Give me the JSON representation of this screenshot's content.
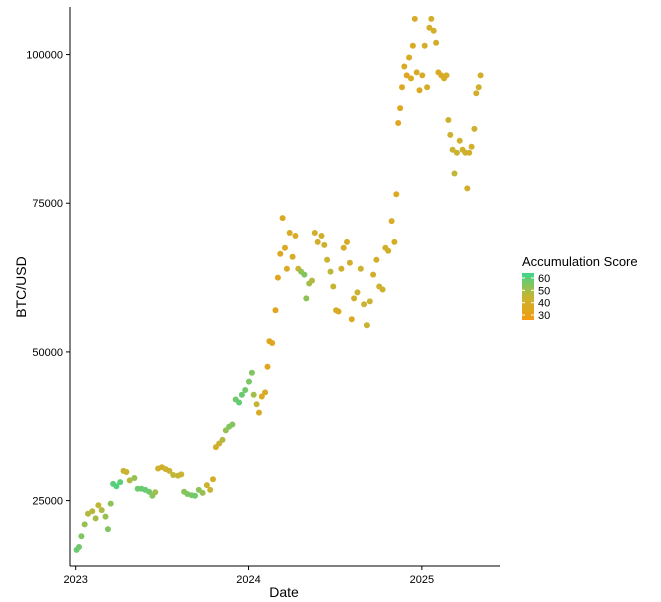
{
  "chart_data": {
    "type": "scatter",
    "xlabel": "Date",
    "ylabel": "BTC/USD",
    "x_ticks": [
      "2023",
      "2024",
      "2025"
    ],
    "y_ticks": [
      25000,
      50000,
      75000,
      100000
    ],
    "y_tick_labels": [
      "25000",
      "50000",
      "75000",
      "100000"
    ],
    "xlim": [
      "2022-12-20",
      "2025-06-15"
    ],
    "ylim": [
      14000,
      108000
    ],
    "grid": false,
    "legend": {
      "title": "Accumulation Score",
      "placement": "right",
      "ticks": [
        "60",
        "50",
        "40",
        "30"
      ],
      "tick_values": [
        60,
        50,
        40,
        30
      ],
      "range": [
        26,
        64
      ]
    },
    "colors": {
      "low": "#F39C12",
      "mid": "#C8B432",
      "high": "#3DD68C"
    },
    "points": [
      {
        "x": "2023-01-03",
        "y": 16700,
        "s": 58
      },
      {
        "x": "2023-01-08",
        "y": 17200,
        "s": 57
      },
      {
        "x": "2023-01-13",
        "y": 19000,
        "s": 55
      },
      {
        "x": "2023-01-20",
        "y": 21000,
        "s": 52
      },
      {
        "x": "2023-01-27",
        "y": 22800,
        "s": 48
      },
      {
        "x": "2023-02-05",
        "y": 23200,
        "s": 47
      },
      {
        "x": "2023-02-12",
        "y": 22000,
        "s": 50
      },
      {
        "x": "2023-02-18",
        "y": 24200,
        "s": 46
      },
      {
        "x": "2023-02-25",
        "y": 23400,
        "s": 49
      },
      {
        "x": "2023-03-05",
        "y": 22300,
        "s": 52
      },
      {
        "x": "2023-03-10",
        "y": 20200,
        "s": 55
      },
      {
        "x": "2023-03-16",
        "y": 24500,
        "s": 53
      },
      {
        "x": "2023-03-21",
        "y": 27800,
        "s": 60
      },
      {
        "x": "2023-03-28",
        "y": 27400,
        "s": 61
      },
      {
        "x": "2023-04-05",
        "y": 28100,
        "s": 60
      },
      {
        "x": "2023-04-12",
        "y": 30000,
        "s": 45
      },
      {
        "x": "2023-04-18",
        "y": 29800,
        "s": 44
      },
      {
        "x": "2023-04-25",
        "y": 28400,
        "s": 48
      },
      {
        "x": "2023-05-05",
        "y": 28800,
        "s": 52
      },
      {
        "x": "2023-05-12",
        "y": 27000,
        "s": 57
      },
      {
        "x": "2023-05-20",
        "y": 27000,
        "s": 58
      },
      {
        "x": "2023-05-28",
        "y": 26800,
        "s": 59
      },
      {
        "x": "2023-06-05",
        "y": 26500,
        "s": 57
      },
      {
        "x": "2023-06-12",
        "y": 25800,
        "s": 54
      },
      {
        "x": "2023-06-18",
        "y": 26400,
        "s": 50
      },
      {
        "x": "2023-06-24",
        "y": 30400,
        "s": 42
      },
      {
        "x": "2023-07-02",
        "y": 30600,
        "s": 42
      },
      {
        "x": "2023-07-10",
        "y": 30300,
        "s": 43
      },
      {
        "x": "2023-07-18",
        "y": 30000,
        "s": 44
      },
      {
        "x": "2023-07-26",
        "y": 29300,
        "s": 46
      },
      {
        "x": "2023-08-05",
        "y": 29200,
        "s": 46
      },
      {
        "x": "2023-08-12",
        "y": 29400,
        "s": 45
      },
      {
        "x": "2023-08-18",
        "y": 26500,
        "s": 53
      },
      {
        "x": "2023-08-25",
        "y": 26100,
        "s": 55
      },
      {
        "x": "2023-09-03",
        "y": 25900,
        "s": 56
      },
      {
        "x": "2023-09-10",
        "y": 25800,
        "s": 57
      },
      {
        "x": "2023-09-18",
        "y": 26800,
        "s": 53
      },
      {
        "x": "2023-09-26",
        "y": 26300,
        "s": 52
      },
      {
        "x": "2023-10-05",
        "y": 27600,
        "s": 43
      },
      {
        "x": "2023-10-12",
        "y": 26800,
        "s": 45
      },
      {
        "x": "2023-10-18",
        "y": 28600,
        "s": 39
      },
      {
        "x": "2023-10-24",
        "y": 34000,
        "s": 40
      },
      {
        "x": "2023-10-31",
        "y": 34600,
        "s": 42
      },
      {
        "x": "2023-11-07",
        "y": 35200,
        "s": 48
      },
      {
        "x": "2023-11-14",
        "y": 36800,
        "s": 52
      },
      {
        "x": "2023-11-21",
        "y": 37400,
        "s": 55
      },
      {
        "x": "2023-11-28",
        "y": 37800,
        "s": 54
      },
      {
        "x": "2023-12-05",
        "y": 42000,
        "s": 57
      },
      {
        "x": "2023-12-12",
        "y": 41500,
        "s": 59
      },
      {
        "x": "2023-12-18",
        "y": 42800,
        "s": 58
      },
      {
        "x": "2023-12-25",
        "y": 43600,
        "s": 57
      },
      {
        "x": "2024-01-02",
        "y": 45000,
        "s": 56
      },
      {
        "x": "2024-01-08",
        "y": 46500,
        "s": 55
      },
      {
        "x": "2024-01-12",
        "y": 42800,
        "s": 50
      },
      {
        "x": "2024-01-18",
        "y": 41200,
        "s": 46
      },
      {
        "x": "2024-01-23",
        "y": 39800,
        "s": 38
      },
      {
        "x": "2024-01-29",
        "y": 42500,
        "s": 36
      },
      {
        "x": "2024-02-05",
        "y": 43200,
        "s": 38
      },
      {
        "x": "2024-02-10",
        "y": 47500,
        "s": 34
      },
      {
        "x": "2024-02-14",
        "y": 51800,
        "s": 33
      },
      {
        "x": "2024-02-20",
        "y": 51500,
        "s": 34
      },
      {
        "x": "2024-02-27",
        "y": 57000,
        "s": 33
      },
      {
        "x": "2024-03-03",
        "y": 62500,
        "s": 34
      },
      {
        "x": "2024-03-08",
        "y": 66500,
        "s": 35
      },
      {
        "x": "2024-03-13",
        "y": 72500,
        "s": 36
      },
      {
        "x": "2024-03-18",
        "y": 67500,
        "s": 37
      },
      {
        "x": "2024-03-22",
        "y": 64000,
        "s": 39
      },
      {
        "x": "2024-03-28",
        "y": 70000,
        "s": 37
      },
      {
        "x": "2024-04-03",
        "y": 66000,
        "s": 38
      },
      {
        "x": "2024-04-09",
        "y": 69500,
        "s": 39
      },
      {
        "x": "2024-04-15",
        "y": 64000,
        "s": 44
      },
      {
        "x": "2024-04-21",
        "y": 63500,
        "s": 52
      },
      {
        "x": "2024-04-28",
        "y": 63000,
        "s": 55
      },
      {
        "x": "2024-05-02",
        "y": 59000,
        "s": 53
      },
      {
        "x": "2024-05-08",
        "y": 61500,
        "s": 50
      },
      {
        "x": "2024-05-14",
        "y": 62000,
        "s": 48
      },
      {
        "x": "2024-05-20",
        "y": 70000,
        "s": 40
      },
      {
        "x": "2024-05-26",
        "y": 68500,
        "s": 41
      },
      {
        "x": "2024-06-03",
        "y": 69500,
        "s": 42
      },
      {
        "x": "2024-06-09",
        "y": 68000,
        "s": 43
      },
      {
        "x": "2024-06-15",
        "y": 65500,
        "s": 45
      },
      {
        "x": "2024-06-22",
        "y": 63500,
        "s": 47
      },
      {
        "x": "2024-06-28",
        "y": 61000,
        "s": 44
      },
      {
        "x": "2024-07-04",
        "y": 57000,
        "s": 38
      },
      {
        "x": "2024-07-09",
        "y": 56800,
        "s": 37
      },
      {
        "x": "2024-07-15",
        "y": 64000,
        "s": 40
      },
      {
        "x": "2024-07-20",
        "y": 67500,
        "s": 39
      },
      {
        "x": "2024-07-27",
        "y": 68500,
        "s": 38
      },
      {
        "x": "2024-08-02",
        "y": 65000,
        "s": 40
      },
      {
        "x": "2024-08-06",
        "y": 55500,
        "s": 36
      },
      {
        "x": "2024-08-11",
        "y": 59000,
        "s": 42
      },
      {
        "x": "2024-08-18",
        "y": 60000,
        "s": 44
      },
      {
        "x": "2024-08-25",
        "y": 64000,
        "s": 43
      },
      {
        "x": "2024-09-01",
        "y": 58000,
        "s": 44
      },
      {
        "x": "2024-09-07",
        "y": 54500,
        "s": 45
      },
      {
        "x": "2024-09-13",
        "y": 58500,
        "s": 44
      },
      {
        "x": "2024-09-20",
        "y": 63000,
        "s": 40
      },
      {
        "x": "2024-09-27",
        "y": 65500,
        "s": 40
      },
      {
        "x": "2024-10-03",
        "y": 61000,
        "s": 43
      },
      {
        "x": "2024-10-10",
        "y": 60500,
        "s": 42
      },
      {
        "x": "2024-10-16",
        "y": 67500,
        "s": 40
      },
      {
        "x": "2024-10-22",
        "y": 67000,
        "s": 40
      },
      {
        "x": "2024-10-29",
        "y": 72000,
        "s": 39
      },
      {
        "x": "2024-11-04",
        "y": 68500,
        "s": 38
      },
      {
        "x": "2024-11-08",
        "y": 76500,
        "s": 36
      },
      {
        "x": "2024-11-12",
        "y": 88500,
        "s": 34
      },
      {
        "x": "2024-11-16",
        "y": 91000,
        "s": 35
      },
      {
        "x": "2024-11-20",
        "y": 94500,
        "s": 36
      },
      {
        "x": "2024-11-25",
        "y": 98000,
        "s": 37
      },
      {
        "x": "2024-11-30",
        "y": 96500,
        "s": 35
      },
      {
        "x": "2024-12-05",
        "y": 99500,
        "s": 38
      },
      {
        "x": "2024-12-09",
        "y": 96000,
        "s": 36
      },
      {
        "x": "2024-12-13",
        "y": 101500,
        "s": 38
      },
      {
        "x": "2024-12-17",
        "y": 106000,
        "s": 39
      },
      {
        "x": "2024-12-21",
        "y": 97000,
        "s": 38
      },
      {
        "x": "2024-12-27",
        "y": 94000,
        "s": 36
      },
      {
        "x": "2025-01-02",
        "y": 96500,
        "s": 38
      },
      {
        "x": "2025-01-07",
        "y": 101500,
        "s": 40
      },
      {
        "x": "2025-01-12",
        "y": 94500,
        "s": 38
      },
      {
        "x": "2025-01-17",
        "y": 104500,
        "s": 40
      },
      {
        "x": "2025-01-21",
        "y": 106000,
        "s": 41
      },
      {
        "x": "2025-01-26",
        "y": 104000,
        "s": 40
      },
      {
        "x": "2025-01-31",
        "y": 102000,
        "s": 40
      },
      {
        "x": "2025-02-05",
        "y": 97000,
        "s": 38
      },
      {
        "x": "2025-02-11",
        "y": 96500,
        "s": 37
      },
      {
        "x": "2025-02-17",
        "y": 96000,
        "s": 38
      },
      {
        "x": "2025-02-22",
        "y": 96500,
        "s": 40
      },
      {
        "x": "2025-02-26",
        "y": 89000,
        "s": 42
      },
      {
        "x": "2025-03-02",
        "y": 86500,
        "s": 43
      },
      {
        "x": "2025-03-07",
        "y": 84000,
        "s": 44
      },
      {
        "x": "2025-03-11",
        "y": 80000,
        "s": 46
      },
      {
        "x": "2025-03-16",
        "y": 83500,
        "s": 44
      },
      {
        "x": "2025-03-22",
        "y": 85500,
        "s": 43
      },
      {
        "x": "2025-03-28",
        "y": 84000,
        "s": 42
      },
      {
        "x": "2025-04-03",
        "y": 83500,
        "s": 42
      },
      {
        "x": "2025-04-07",
        "y": 77500,
        "s": 40
      },
      {
        "x": "2025-04-11",
        "y": 83500,
        "s": 41
      },
      {
        "x": "2025-04-16",
        "y": 84500,
        "s": 43
      },
      {
        "x": "2025-04-22",
        "y": 87500,
        "s": 42
      },
      {
        "x": "2025-04-26",
        "y": 93500,
        "s": 40
      },
      {
        "x": "2025-05-01",
        "y": 94500,
        "s": 41
      },
      {
        "x": "2025-05-05",
        "y": 96500,
        "s": 40
      }
    ]
  }
}
